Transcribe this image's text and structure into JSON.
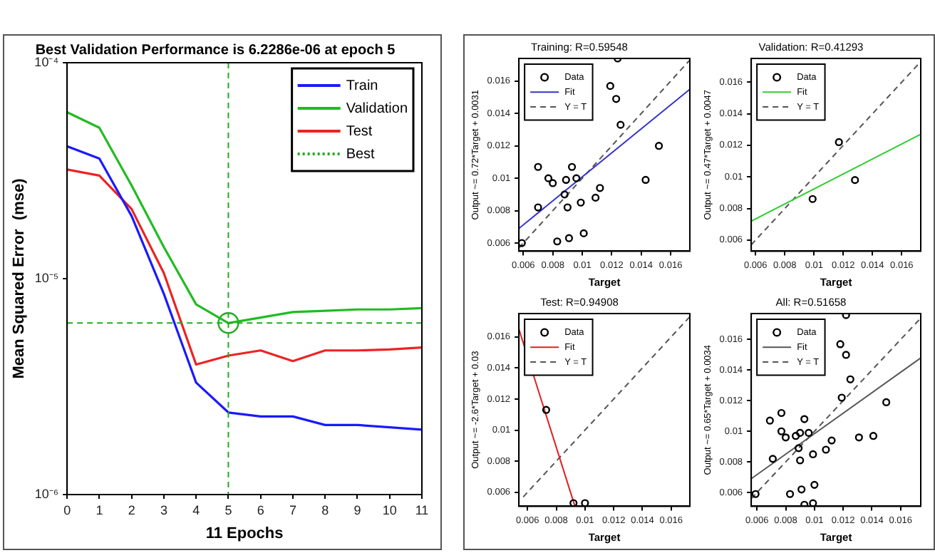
{
  "chart_data": [
    {
      "type": "line",
      "title": "Best Validation Performance is 6.2286e-06 at epoch 5",
      "xlabel": "11 Epochs",
      "ylabel": "Mean Squared Error  (mse)",
      "log": "y",
      "x": [
        0,
        1,
        2,
        3,
        4,
        5,
        6,
        7,
        8,
        9,
        10,
        11
      ],
      "xlim": [
        0,
        11
      ],
      "xticks": [
        0,
        1,
        2,
        3,
        4,
        5,
        6,
        7,
        8,
        9,
        10,
        11
      ],
      "ylim": [
        1e-06,
        0.0001
      ],
      "yticks": [
        {
          "value": 0.0001,
          "label": "10⁻⁴"
        },
        {
          "value": 1e-05,
          "label": "10⁻⁵"
        },
        {
          "value": 1e-06,
          "label": "10⁻⁶"
        }
      ],
      "grid": false,
      "legend": "top right",
      "series": [
        {
          "name": "Train",
          "color": "#1a1aff",
          "values": [
            4.1e-05,
            3.6e-05,
            1.95e-05,
            8.5e-06,
            3.3e-06,
            2.4e-06,
            2.3e-06,
            2.3e-06,
            2.1e-06,
            2.1e-06,
            2.05e-06,
            2e-06
          ]
        },
        {
          "name": "Validation",
          "color": "#22bb22",
          "values": [
            5.9e-05,
            5e-05,
            2.7e-05,
            1.4e-05,
            7.6e-06,
            6.2286e-06,
            6.6e-06,
            7e-06,
            7.1e-06,
            7.2e-06,
            7.2e-06,
            7.3e-06
          ]
        },
        {
          "name": "Test",
          "color": "#ee2222",
          "values": [
            3.2e-05,
            3e-05,
            2.1e-05,
            1.06e-05,
            4e-06,
            4.4e-06,
            4.65e-06,
            4.15e-06,
            4.65e-06,
            4.65e-06,
            4.7e-06,
            4.8e-06
          ]
        },
        {
          "name": "Best",
          "type": "scatter",
          "color": "#22aa22",
          "x": [
            5
          ],
          "values": [
            6.2286e-06
          ],
          "marker": "circle",
          "line_style": "dotted"
        }
      ],
      "ref_lines": [
        {
          "axis": "x",
          "value": 5,
          "color": "#22aa22",
          "line_style": "dashed"
        },
        {
          "axis": "y",
          "value": 6.2286e-06,
          "color": "#22aa22",
          "line_style": "dashed"
        }
      ]
    },
    {
      "type": "scatter",
      "title": "Training: R=0.59548",
      "xlabel": "Target",
      "ylabel": "Output ~= 0.72*Target + 0.0031",
      "xlim": [
        0.0057,
        0.0173
      ],
      "ylim": [
        0.0055,
        0.0174
      ],
      "xticks": [
        0.006,
        0.008,
        0.01,
        0.012,
        0.014,
        0.016
      ],
      "yticks": [
        0.006,
        0.008,
        0.01,
        0.012,
        0.014,
        0.016
      ],
      "grid": false,
      "legend": "top left",
      "series": [
        {
          "name": "Data",
          "color": "#000000",
          "marker": "circle",
          "x": [
            0.0124,
            0.0119,
            0.0123,
            0.0126,
            0.0152,
            0.0143,
            0.007,
            0.0077,
            0.008,
            0.0093,
            0.0089,
            0.0096,
            0.0088,
            0.0112,
            0.0109,
            0.0099,
            0.009,
            0.007,
            0.0101,
            0.0091,
            0.0083,
            0.0059
          ],
          "values": [
            0.0174,
            0.0157,
            0.0149,
            0.0133,
            0.012,
            0.0099,
            0.0107,
            0.01,
            0.0097,
            0.0107,
            0.0099,
            0.01,
            0.009,
            0.0094,
            0.0088,
            0.0085,
            0.0082,
            0.0082,
            0.0066,
            0.0063,
            0.0061,
            0.006
          ]
        },
        {
          "name": "Fit",
          "type": "line",
          "color": "#3333cc",
          "x": [
            0.0057,
            0.0173
          ],
          "values": [
            0.0069,
            0.0155
          ]
        },
        {
          "name": "Y = T",
          "type": "line",
          "color": "#555555",
          "line_style": "dashed",
          "x": [
            0.0057,
            0.0173
          ],
          "values": [
            0.0057,
            0.0173
          ]
        }
      ]
    },
    {
      "type": "scatter",
      "title": "Validation: R=0.41293",
      "xlabel": "Target",
      "ylabel": "Output ~= 0.47*Target + 0.0047",
      "xlim": [
        0.0057,
        0.0173
      ],
      "ylim": [
        0.0053,
        0.0175
      ],
      "xticks": [
        0.006,
        0.008,
        0.01,
        0.012,
        0.014,
        0.016
      ],
      "yticks": [
        0.006,
        0.008,
        0.01,
        0.012,
        0.014,
        0.016
      ],
      "grid": false,
      "legend": "top left",
      "series": [
        {
          "name": "Data",
          "color": "#000000",
          "marker": "circle",
          "x": [
            0.0117,
            0.0128,
            0.0099
          ],
          "values": [
            0.0122,
            0.0098,
            0.0086
          ]
        },
        {
          "name": "Fit",
          "type": "line",
          "color": "#33cc33",
          "x": [
            0.0057,
            0.0173
          ],
          "values": [
            0.0072,
            0.0127
          ]
        },
        {
          "name": "Y = T",
          "type": "line",
          "color": "#555555",
          "line_style": "dashed",
          "x": [
            0.0057,
            0.0173
          ],
          "values": [
            0.0057,
            0.0173
          ]
        }
      ]
    },
    {
      "type": "scatter",
      "title": "Test: R=0.94908",
      "xlabel": "Target",
      "ylabel": "Output ~= -2.6*Target + 0.03",
      "xlim": [
        0.0054,
        0.0173
      ],
      "ylim": [
        0.0051,
        0.0175
      ],
      "xticks": [
        0.006,
        0.008,
        0.01,
        0.012,
        0.014,
        0.016
      ],
      "yticks": [
        0.006,
        0.008,
        0.01,
        0.012,
        0.014,
        0.016
      ],
      "grid": false,
      "legend": "top left",
      "series": [
        {
          "name": "Data",
          "color": "#000000",
          "marker": "circle",
          "x": [
            0.0073,
            0.0092,
            0.01
          ],
          "values": [
            0.0113,
            0.0053,
            0.0053
          ]
        },
        {
          "name": "Fit",
          "type": "line",
          "color": "#e02020",
          "x": [
            0.0054,
            0.0093
          ],
          "values": [
            0.0165,
            0.0051
          ]
        },
        {
          "name": "Y = T",
          "type": "line",
          "color": "#555555",
          "line_style": "dashed",
          "x": [
            0.0057,
            0.0173
          ],
          "values": [
            0.0057,
            0.0173
          ]
        }
      ]
    },
    {
      "type": "scatter",
      "title": "All: R=0.51658",
      "xlabel": "Target",
      "ylabel": "Output ~= 0.65*Target + 0.0034",
      "xlim": [
        0.0056,
        0.0174
      ],
      "ylim": [
        0.0051,
        0.0177
      ],
      "xticks": [
        0.006,
        0.008,
        0.01,
        0.012,
        0.014,
        0.016
      ],
      "yticks": [
        0.006,
        0.008,
        0.01,
        0.012,
        0.014,
        0.016
      ],
      "grid": false,
      "legend": "top left",
      "series": [
        {
          "name": "Data",
          "color": "#000000",
          "marker": "circle",
          "x": [
            0.0122,
            0.0118,
            0.0122,
            0.0125,
            0.0119,
            0.015,
            0.0141,
            0.0131,
            0.0077,
            0.0069,
            0.0077,
            0.008,
            0.009,
            0.0093,
            0.0096,
            0.0087,
            0.0112,
            0.0108,
            0.0099,
            0.0089,
            0.009,
            0.0071,
            0.01,
            0.0091,
            0.0083,
            0.0059,
            0.0093,
            0.0099
          ],
          "values": [
            0.0176,
            0.0157,
            0.015,
            0.0134,
            0.0122,
            0.0119,
            0.0097,
            0.0096,
            0.0112,
            0.0107,
            0.01,
            0.0096,
            0.0099,
            0.0108,
            0.0099,
            0.0097,
            0.0094,
            0.0088,
            0.0085,
            0.0089,
            0.0081,
            0.0082,
            0.0065,
            0.0062,
            0.0059,
            0.0059,
            0.0052,
            0.0053
          ]
        },
        {
          "name": "Fit",
          "type": "line",
          "color": "#555555",
          "x": [
            0.0056,
            0.0174
          ],
          "values": [
            0.0069,
            0.0148
          ]
        },
        {
          "name": "Y = T",
          "type": "line",
          "color": "#555555",
          "line_style": "dashed",
          "x": [
            0.0056,
            0.0174
          ],
          "values": [
            0.0056,
            0.0174
          ]
        }
      ]
    }
  ]
}
